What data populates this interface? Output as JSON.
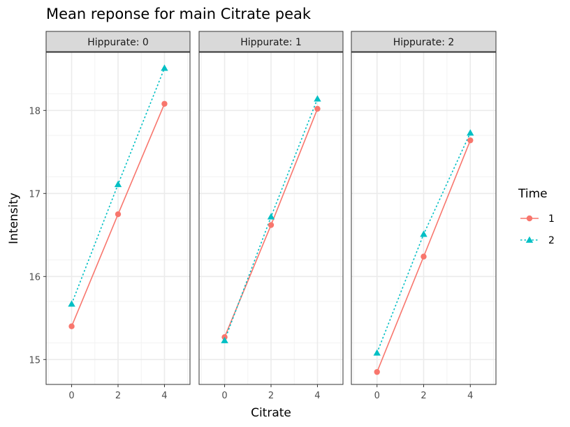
{
  "chart_data": {
    "type": "line",
    "title": "Mean reponse for main Citrate peak",
    "xlabel": "Citrate",
    "ylabel": "Intensity",
    "x": [
      0,
      2,
      4
    ],
    "xlim": [
      -1.1,
      5.1
    ],
    "ylim": [
      14.7,
      18.7
    ],
    "x_ticks": [
      0,
      2,
      4
    ],
    "y_ticks": [
      15,
      16,
      17,
      18
    ],
    "grid": true,
    "legend": {
      "title": "Time",
      "placement": "right",
      "entries": [
        {
          "label": "1",
          "color": "#F8766D",
          "marker": "circle",
          "line": "solid"
        },
        {
          "label": "2",
          "color": "#00BFC4",
          "marker": "triangle",
          "line": "dotted"
        }
      ]
    },
    "facets": [
      {
        "label": "Hippurate: 0",
        "series": [
          {
            "name": "1",
            "values": [
              15.4,
              16.75,
              18.08
            ]
          },
          {
            "name": "2",
            "values": [
              15.67,
              17.11,
              18.51
            ]
          }
        ]
      },
      {
        "label": "Hippurate: 1",
        "series": [
          {
            "name": "1",
            "values": [
              15.27,
              16.62,
              18.02
            ]
          },
          {
            "name": "2",
            "values": [
              15.23,
              16.72,
              18.14
            ]
          }
        ]
      },
      {
        "label": "Hippurate: 2",
        "series": [
          {
            "name": "1",
            "values": [
              14.85,
              16.24,
              17.64
            ]
          },
          {
            "name": "2",
            "values": [
              15.08,
              16.51,
              17.73
            ]
          }
        ]
      }
    ]
  }
}
